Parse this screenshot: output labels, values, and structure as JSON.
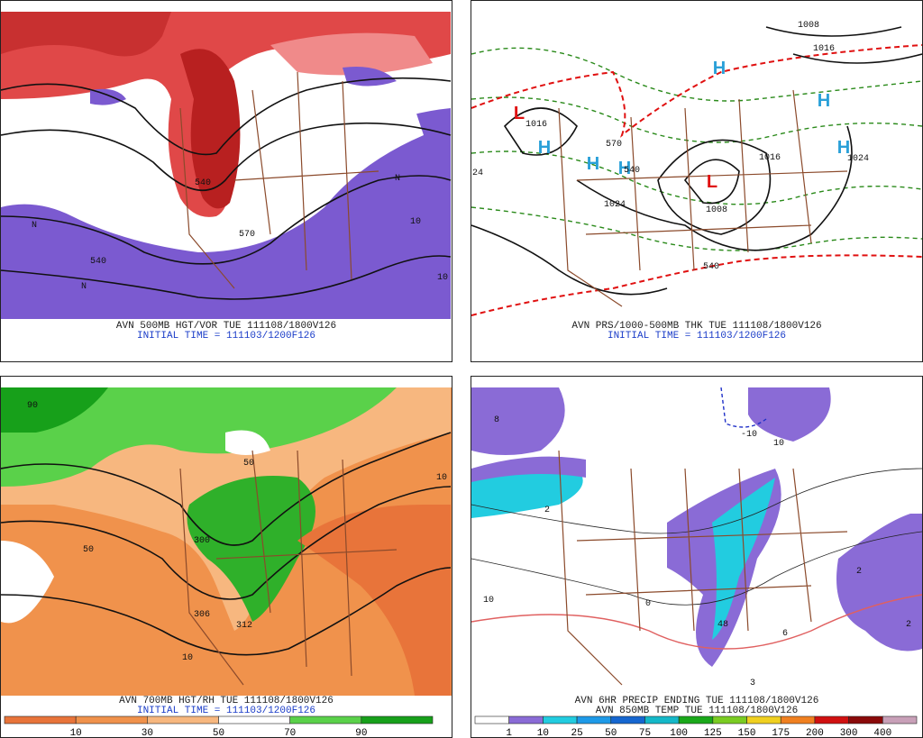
{
  "panels": [
    {
      "captions": [
        "AVN 500MB HGT/VOR TUE 111108/1800V126",
        "INITIAL TIME = 111103/1200F126"
      ],
      "labels": [
        "540",
        "570",
        "N",
        "N",
        "10",
        "540",
        "N",
        "10"
      ]
    },
    {
      "captions": [
        "AVN PRS/1000-500MB THK TUE 111108/1800V126",
        "INITIAL TIME = 111103/1200F126"
      ],
      "labels": [
        "H",
        "H",
        "H",
        "H",
        "H",
        "H",
        "L",
        "L",
        "1016",
        "1008",
        "1024",
        "1016",
        "1008",
        "1016",
        "1024",
        "570",
        "540",
        "540",
        "24"
      ]
    },
    {
      "captions": [
        "AVN 700MB HGT/RH TUE 111108/1800V126",
        "INITIAL TIME = 111103/1200F126"
      ],
      "labels": [
        "300",
        "306",
        "312",
        "10",
        "50",
        "50",
        "90",
        "10"
      ]
    },
    {
      "captions": [
        "AVN 6HR PRECIP ENDING TUE 111108/1800V126",
        "AVN 850MB TEMP TUE 111108/1800V126"
      ],
      "labels": [
        "8",
        "2",
        "3",
        "6",
        "48",
        "10",
        "0",
        "-10",
        "2",
        "2",
        "10"
      ]
    }
  ],
  "colorbars": [
    {
      "labels": [
        10,
        30,
        50,
        70,
        90
      ],
      "colors": [
        "#e8743a",
        "#f0924c",
        "#f7b77f",
        "#ffffff",
        "#5ad14a",
        "#17a01a"
      ]
    },
    {
      "labels": [
        1,
        10,
        25,
        50,
        75,
        100,
        125,
        150,
        175,
        200,
        300,
        400
      ],
      "colors": [
        "#ffffff",
        "#8a6bd6",
        "#22cce0",
        "#1e9ae8",
        "#1566d0",
        "#14b8c8",
        "#1aa81a",
        "#7acc22",
        "#f0d020",
        "#f08020",
        "#d01010",
        "#8a0a0a",
        "#c8a0b8"
      ]
    }
  ]
}
